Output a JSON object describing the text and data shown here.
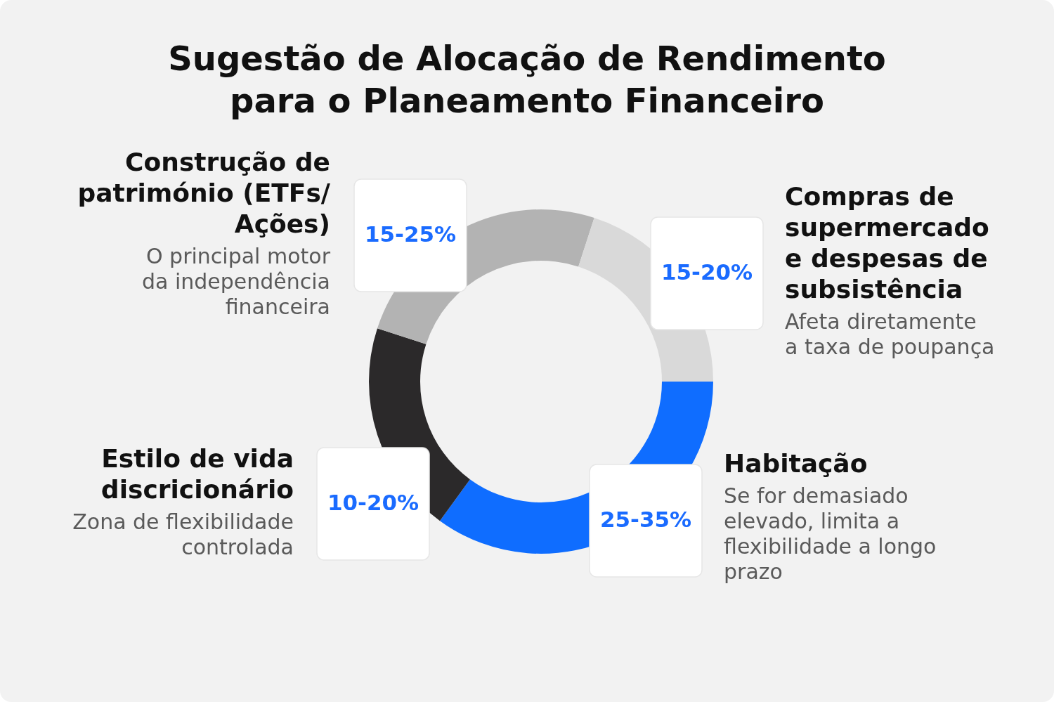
{
  "chart_data": {
    "type": "donut",
    "title": "Sugestão de Alocação de Rendimento para o Planeamento Financeiro",
    "categories": [
      "Habitação",
      "Estilo de vida discricionário",
      "Construção de património (ETFs/ Ações)",
      "Compras de supermercado e despesas de subsistência"
    ],
    "values": [
      35,
      20,
      25,
      20
    ],
    "colors": [
      "#0f6dff",
      "#2b292a",
      "#b3b3b3",
      "#d9d9d9"
    ],
    "annotations": [
      "Se for demasiado elevado, limita a flexibilidade a longo prazo",
      "Zona de flexibilidade controlada",
      "O principal motor da independência financeira",
      "Afeta diretamente a taxa de poupança",
      {
        "text": "25-35%",
        "x": "Habitação"
      },
      {
        "text": "10-20%",
        "x": "Estilo de vida discricionário"
      },
      {
        "text": "15-25%",
        "x": "Construção de património (ETFs/ Ações)"
      },
      {
        "text": "15-20%",
        "x": "Compras de supermercado e despesas de subsistência"
      }
    ]
  }
}
